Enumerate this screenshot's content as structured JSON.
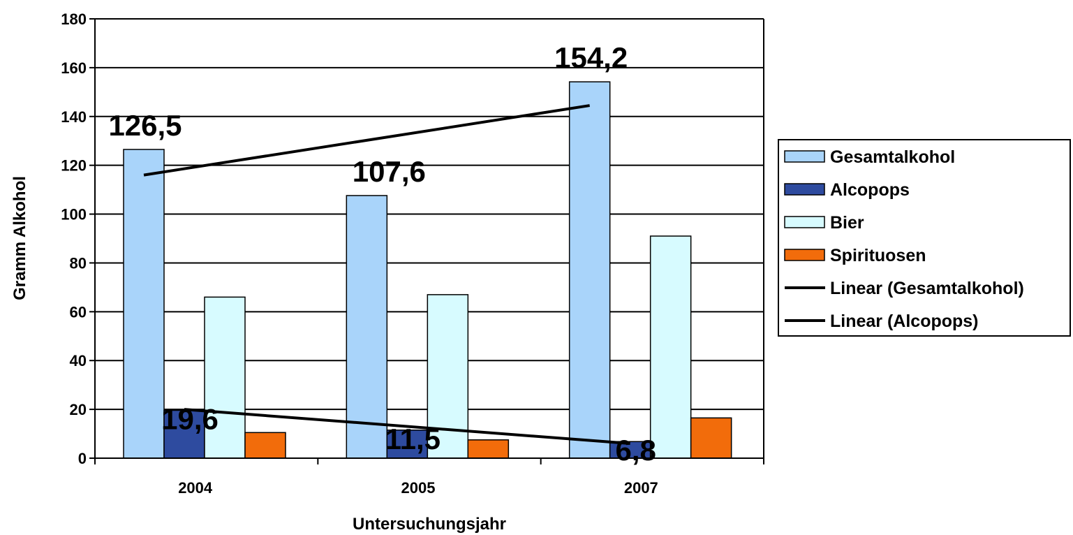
{
  "chart_data": {
    "type": "bar",
    "title": "",
    "xlabel": "Untersuchungsjahr",
    "ylabel": "Gramm Alkohol",
    "ylim": [
      0,
      180
    ],
    "yticks": [
      0,
      20,
      40,
      60,
      80,
      100,
      120,
      140,
      160,
      180
    ],
    "ytick_labels": [
      "0",
      "20",
      "40",
      "60",
      "80",
      "100",
      "120",
      "140",
      "160",
      "180"
    ],
    "grid": "horizontal",
    "legend_position": "right",
    "categories": [
      "2004",
      "2005",
      "2007"
    ],
    "series": [
      {
        "name": "Gesamtalkohol",
        "values": [
          126.5,
          107.6,
          154.2
        ],
        "color": "#A9D4FA"
      },
      {
        "name": "Alcopops",
        "values": [
          19.6,
          11.5,
          6.8
        ],
        "color": "#2E4B9F"
      },
      {
        "name": "Bier",
        "values": [
          66,
          67,
          91
        ],
        "color": "#D7FBFF"
      },
      {
        "name": "Spirituosen",
        "values": [
          10.5,
          7.5,
          16.5
        ],
        "color": "#F26C0B"
      }
    ],
    "trendlines": [
      {
        "name": "Linear (Gesamtalkohol)",
        "of_series": "Gesamtalkohol",
        "start": 116,
        "end": 144.5,
        "color": "#000000"
      },
      {
        "name": "Linear (Alcopops)",
        "of_series": "Alcopops",
        "start": 20,
        "end": 6,
        "color": "#000000"
      }
    ],
    "data_labels": [
      {
        "series": "Gesamtalkohol",
        "category": "2004",
        "text": "126,5"
      },
      {
        "series": "Gesamtalkohol",
        "category": "2005",
        "text": "107,6"
      },
      {
        "series": "Gesamtalkohol",
        "category": "2007",
        "text": "154,2"
      },
      {
        "series": "Alcopops",
        "category": "2004",
        "text": "19,6"
      },
      {
        "series": "Alcopops",
        "category": "2005",
        "text": "11,5"
      },
      {
        "series": "Alcopops",
        "category": "2007",
        "text": "6,8"
      }
    ],
    "legend": [
      {
        "label": "Gesamtalkohol",
        "kind": "box",
        "color": "#A9D4FA"
      },
      {
        "label": "Alcopops",
        "kind": "box",
        "color": "#2E4B9F"
      },
      {
        "label": "Bier",
        "kind": "box",
        "color": "#D7FBFF"
      },
      {
        "label": "Spirituosen",
        "kind": "box",
        "color": "#F26C0B"
      },
      {
        "label": "Linear (Gesamtalkohol)",
        "kind": "line",
        "color": "#000000"
      },
      {
        "label": "Linear (Alcopops)",
        "kind": "line",
        "color": "#000000"
      }
    ]
  }
}
